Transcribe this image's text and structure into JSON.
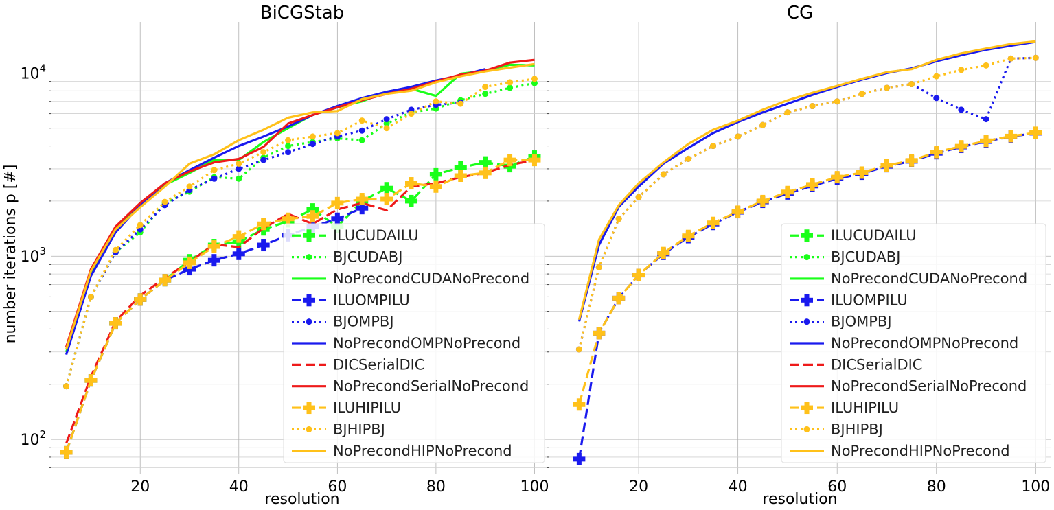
{
  "figure": {
    "ylabel": "number iterations p [#]"
  },
  "colors": {
    "CUDA": "#1aff1a",
    "OMP": "#1a1aee",
    "Serial": "#ee1a1a",
    "HIP": "#ffc11a"
  },
  "chart_data": [
    {
      "type": "line",
      "title": "BiCGStab",
      "xlabel": "resolution",
      "ylabel": "number iterations p [#]",
      "yscale": "log",
      "xlim": [
        2,
        103
      ],
      "ylim": [
        65,
        19000
      ],
      "xticks": [
        "20",
        "40",
        "60",
        "80",
        "100"
      ],
      "yticks": [
        "10^2",
        "10^3",
        "10^4"
      ],
      "grid": true,
      "legend_position": "lower right",
      "series": [
        {
          "name": "ILUCUDAILU",
          "color": "CUDA",
          "style": "dashed",
          "marker": "plus",
          "x": [
            5,
            10,
            15,
            20,
            25,
            30,
            35,
            40,
            45,
            50,
            55,
            60,
            65,
            70,
            75,
            80,
            85,
            90,
            95,
            100
          ],
          "y": [
            85,
            210,
            430,
            580,
            740,
            950,
            1150,
            1200,
            1400,
            1550,
            1800,
            1450,
            2000,
            2350,
            2000,
            2800,
            3050,
            3250,
            3100,
            3500
          ]
        },
        {
          "name": "BJCUDABJ",
          "color": "CUDA",
          "style": "dotted",
          "marker": "dot",
          "x": [
            5,
            10,
            15,
            20,
            25,
            30,
            35,
            40,
            45,
            50,
            55,
            60,
            65,
            70,
            75,
            80,
            85,
            90,
            95,
            100
          ],
          "y": [
            195,
            600,
            1050,
            1350,
            1950,
            2250,
            2700,
            2650,
            3450,
            4000,
            4200,
            4400,
            4300,
            5300,
            6100,
            6400,
            7100,
            7700,
            8300,
            8800
          ]
        },
        {
          "name": "NoPrecondCUDANoPrecond",
          "color": "CUDA",
          "style": "solid",
          "marker": "none",
          "x": [
            5,
            10,
            15,
            20,
            25,
            30,
            35,
            40,
            45,
            50,
            55,
            60,
            65,
            70,
            75,
            80,
            85,
            90,
            95,
            100
          ],
          "y": [
            300,
            820,
            1420,
            1900,
            2450,
            2850,
            3350,
            3350,
            4200,
            5000,
            5900,
            6500,
            7000,
            7900,
            8200,
            7500,
            9900,
            10300,
            11100,
            11000
          ]
        },
        {
          "name": "ILUOMPILU",
          "color": "OMP",
          "style": "dashed",
          "marker": "plus",
          "x": [
            5,
            10,
            15,
            20,
            25,
            30,
            35,
            40,
            45,
            50,
            55,
            60,
            65
          ],
          "y": [
            85,
            210,
            430,
            580,
            740,
            850,
            950,
            1030,
            1150,
            1300,
            1450,
            1600,
            1830
          ]
        },
        {
          "name": "BJOMPBJ",
          "color": "OMP",
          "style": "dotted",
          "marker": "dot",
          "x": [
            5,
            10,
            15,
            20,
            25,
            30,
            35,
            40,
            45,
            50,
            55,
            60,
            65,
            70,
            75,
            80,
            85
          ],
          "y": [
            195,
            600,
            1050,
            1400,
            1900,
            2300,
            2650,
            3000,
            3350,
            3700,
            4100,
            4500,
            4850,
            5600,
            6300,
            6700,
            6900
          ]
        },
        {
          "name": "NoPrecondOMPNoPrecond",
          "color": "OMP",
          "style": "solid",
          "marker": "none",
          "x": [
            5,
            10,
            15,
            20,
            25,
            30,
            35,
            40,
            45,
            50,
            55,
            60,
            65,
            70,
            75,
            80,
            85,
            90
          ],
          "y": [
            290,
            780,
            1350,
            1900,
            2500,
            2950,
            3450,
            4000,
            4500,
            5100,
            5900,
            6600,
            7300,
            7900,
            8400,
            9100,
            9700,
            10500
          ]
        },
        {
          "name": "DICSerialDIC",
          "color": "Serial",
          "style": "dashed",
          "marker": "none",
          "x": [
            5,
            10,
            15,
            20,
            25,
            30,
            35,
            40,
            45,
            50,
            55,
            60,
            65,
            70,
            75,
            80,
            85,
            90,
            95,
            100
          ],
          "y": [
            95,
            220,
            440,
            610,
            760,
            930,
            1160,
            1120,
            1420,
            1700,
            1500,
            1800,
            1950,
            1780,
            2400,
            2500,
            2700,
            2850,
            3150,
            3350
          ]
        },
        {
          "name": "NoPrecondSerialNoPrecond",
          "color": "Serial",
          "style": "solid",
          "marker": "none",
          "x": [
            5,
            10,
            15,
            20,
            25,
            30,
            35,
            40,
            45,
            50,
            55,
            60,
            65,
            70,
            75,
            80,
            85,
            90,
            95,
            100
          ],
          "y": [
            320,
            850,
            1450,
            1950,
            2500,
            2900,
            3250,
            3400,
            3950,
            5300,
            5900,
            6500,
            7100,
            7700,
            8200,
            9000,
            9800,
            10300,
            11400,
            11800
          ]
        },
        {
          "name": "ILUHIPILU",
          "color": "HIP",
          "style": "dashed",
          "marker": "plus",
          "x": [
            5,
            10,
            15,
            20,
            25,
            30,
            35,
            40,
            45,
            50,
            55,
            60,
            65,
            70,
            75,
            80,
            85,
            90,
            95,
            100
          ],
          "y": [
            85,
            210,
            430,
            580,
            740,
            920,
            1130,
            1280,
            1500,
            1600,
            1650,
            1950,
            2050,
            2050,
            2500,
            2400,
            2750,
            2850,
            3350,
            3350
          ]
        },
        {
          "name": "BJHIPBJ",
          "color": "HIP",
          "style": "dotted",
          "marker": "dot",
          "x": [
            5,
            10,
            15,
            20,
            25,
            30,
            35,
            40,
            45,
            50,
            55,
            60,
            65,
            70,
            75,
            80,
            85,
            90,
            95,
            100
          ],
          "y": [
            195,
            600,
            1080,
            1480,
            1980,
            2400,
            2950,
            3200,
            3700,
            4300,
            4500,
            4700,
            5500,
            5000,
            6000,
            7000,
            6800,
            8400,
            8900,
            9300
          ]
        },
        {
          "name": "NoPrecondHIPNoPrecond",
          "color": "HIP",
          "style": "solid",
          "marker": "none",
          "x": [
            5,
            10,
            15,
            20,
            25,
            30,
            35,
            40,
            45,
            50,
            55,
            60,
            65,
            70,
            75,
            80,
            85,
            90,
            95,
            100
          ],
          "y": [
            310,
            830,
            1400,
            1850,
            2400,
            3200,
            3600,
            4300,
            4900,
            5700,
            6100,
            6200,
            7200,
            7700,
            8000,
            8900,
            9600,
            10200,
            10700,
            11200
          ]
        }
      ]
    },
    {
      "type": "line",
      "title": "CG",
      "xlabel": "resolution",
      "ylabel": "",
      "yscale": "log",
      "xlim": [
        2,
        103
      ],
      "ylim": [
        65,
        19000
      ],
      "xticks": [
        "20",
        "40",
        "60",
        "80",
        "100"
      ],
      "yticks": [
        "10^2",
        "10^3",
        "10^4"
      ],
      "grid": true,
      "legend_position": "lower right",
      "series": [
        {
          "name": "ILUCUDAILU",
          "color": "CUDA",
          "style": "dashed",
          "marker": "plus",
          "x": [],
          "y": []
        },
        {
          "name": "BJCUDABJ",
          "color": "CUDA",
          "style": "dotted",
          "marker": "dot",
          "x": [],
          "y": []
        },
        {
          "name": "NoPrecondCUDANoPrecond",
          "color": "CUDA",
          "style": "solid",
          "marker": "none",
          "x": [],
          "y": []
        },
        {
          "name": "ILUOMPILU",
          "color": "OMP",
          "style": "dashed",
          "marker": "plus",
          "x": [
            8,
            12,
            16,
            20,
            25,
            30,
            35,
            40,
            45,
            50,
            55,
            60,
            65,
            70,
            75,
            80,
            85,
            90,
            95,
            100
          ],
          "y": [
            78,
            380,
            590,
            790,
            1030,
            1270,
            1500,
            1740,
            1980,
            2200,
            2420,
            2650,
            2820,
            3100,
            3300,
            3650,
            3950,
            4230,
            4500,
            4700
          ]
        },
        {
          "name": "BJOMPBJ",
          "color": "OMP",
          "style": "dotted",
          "marker": "dot",
          "x": [
            8,
            12,
            16,
            20,
            25,
            30,
            35,
            40,
            45,
            50,
            55,
            60,
            65,
            70,
            75,
            80,
            85,
            90,
            95,
            100
          ],
          "y": [
            310,
            870,
            1600,
            2100,
            2800,
            3400,
            4000,
            4500,
            5200,
            6100,
            6600,
            7000,
            7700,
            8300,
            8700,
            7300,
            6300,
            5600,
            12000,
            12100
          ]
        },
        {
          "name": "NoPrecondOMPNoPrecond",
          "color": "OMP",
          "style": "solid",
          "marker": "none",
          "x": [
            8,
            12,
            16,
            20,
            25,
            30,
            35,
            40,
            45,
            50,
            55,
            60,
            65,
            70,
            75,
            80,
            85,
            90,
            95,
            100
          ],
          "y": [
            440,
            1150,
            1860,
            2400,
            3200,
            3900,
            4700,
            5400,
            6100,
            6800,
            7600,
            8400,
            9200,
            10000,
            10600,
            11600,
            12500,
            13400,
            14100,
            14800
          ]
        },
        {
          "name": "DICSerialDIC",
          "color": "Serial",
          "style": "dashed",
          "marker": "none",
          "x": [],
          "y": []
        },
        {
          "name": "NoPrecondSerialNoPrecond",
          "color": "Serial",
          "style": "solid",
          "marker": "none",
          "x": [],
          "y": []
        },
        {
          "name": "ILUHIPILU",
          "color": "HIP",
          "style": "dashed",
          "marker": "plus",
          "x": [
            8,
            12,
            16,
            20,
            25,
            30,
            35,
            40,
            45,
            50,
            55,
            60,
            65,
            70,
            75,
            80,
            85,
            90,
            95,
            100
          ],
          "y": [
            155,
            380,
            590,
            790,
            1040,
            1290,
            1520,
            1750,
            2000,
            2240,
            2460,
            2700,
            2860,
            3130,
            3330,
            3700,
            3980,
            4260,
            4520,
            4720
          ]
        },
        {
          "name": "BJHIPBJ",
          "color": "HIP",
          "style": "dotted",
          "marker": "dot",
          "x": [
            8,
            12,
            16,
            20,
            25,
            30,
            35,
            40,
            45,
            50,
            55,
            60,
            65,
            70,
            75,
            80,
            85,
            90,
            95,
            100
          ],
          "y": [
            310,
            870,
            1600,
            2100,
            2800,
            3400,
            4000,
            4500,
            5200,
            6100,
            6600,
            7000,
            7700,
            8300,
            8700,
            9600,
            10400,
            11000,
            12000,
            12100
          ]
        },
        {
          "name": "NoPrecondHIPNoPrecond",
          "color": "HIP",
          "style": "solid",
          "marker": "none",
          "x": [
            8,
            12,
            16,
            20,
            25,
            30,
            35,
            40,
            45,
            50,
            55,
            60,
            65,
            70,
            75,
            80,
            85,
            90,
            95,
            100
          ],
          "y": [
            450,
            1230,
            1900,
            2500,
            3250,
            4100,
            4900,
            5500,
            6300,
            7100,
            7800,
            8500,
            9300,
            10100,
            10500,
            11800,
            12800,
            13600,
            14400,
            14900
          ]
        }
      ]
    }
  ]
}
